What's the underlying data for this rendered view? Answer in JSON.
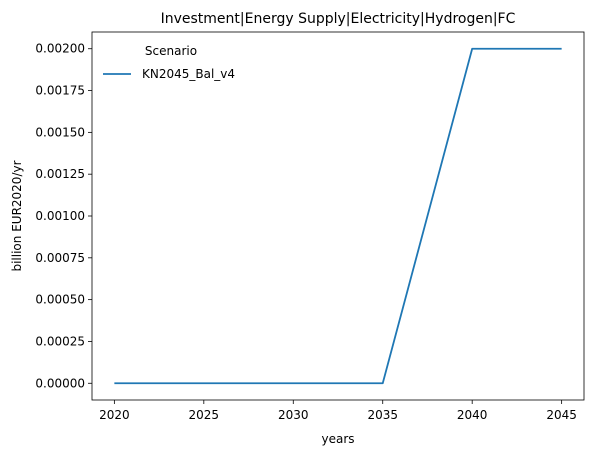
{
  "chart_data": {
    "type": "line",
    "title": "Investment|Energy Supply|Electricity|Hydrogen|FC",
    "xlabel": "years",
    "ylabel": "billion EUR2020/yr",
    "x": [
      2020,
      2025,
      2030,
      2035,
      2040,
      2045
    ],
    "xlim": [
      2018.75,
      2046.25
    ],
    "ylim": [
      -0.0001,
      0.0021
    ],
    "xticks": [
      2020,
      2025,
      2030,
      2035,
      2040,
      2045
    ],
    "xtick_labels": [
      "2020",
      "2025",
      "2030",
      "2035",
      "2040",
      "2045"
    ],
    "yticks": [
      0,
      0.00025,
      0.0005,
      0.00075,
      0.001,
      0.00125,
      0.0015,
      0.00175,
      0.002
    ],
    "ytick_labels": [
      "0.00000",
      "0.00025",
      "0.00050",
      "0.00075",
      "0.00100",
      "0.00125",
      "0.00150",
      "0.00175",
      "0.00200"
    ],
    "grid": false,
    "legend": {
      "title": "Scenario",
      "position": "top-left"
    },
    "series": [
      {
        "name": "KN2045_Bal_v4",
        "color": "#1f77b4",
        "values": [
          0,
          0,
          0,
          0,
          0.002,
          0.002
        ]
      }
    ]
  }
}
